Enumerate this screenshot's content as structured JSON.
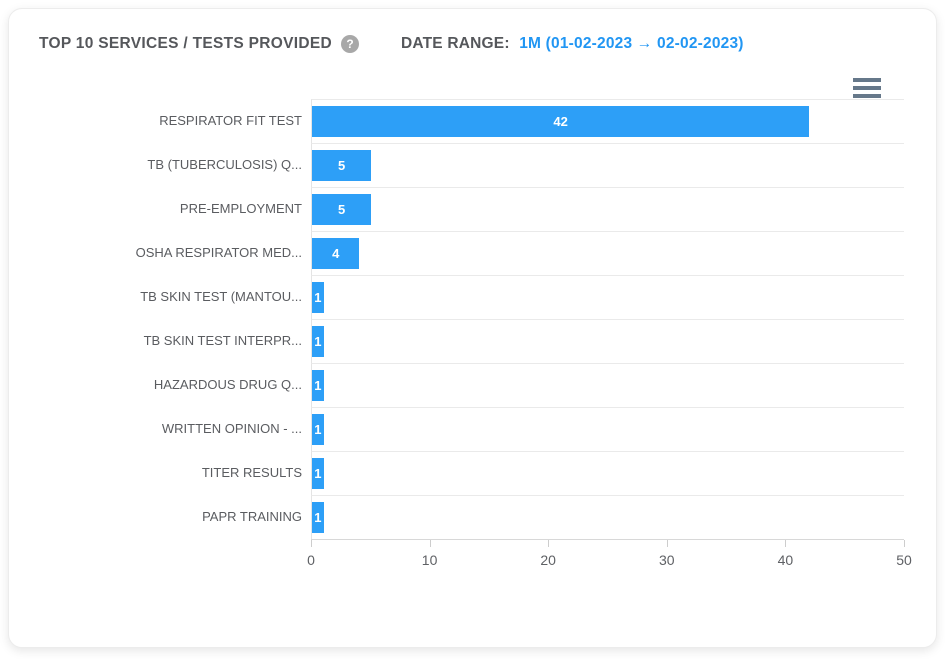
{
  "header": {
    "title": "TOP 10 SERVICES / TESTS PROVIDED",
    "help_icon_glyph": "?",
    "date_range_label": "DATE RANGE:",
    "date_range_value": "1M (01-02-2023 → 02-02-2023)"
  },
  "menu": {
    "icon": "hamburger-menu-icon"
  },
  "colors": {
    "bar": "#2d9ff7",
    "date_range_accent": "#2196f3",
    "title_text": "#55575b",
    "axis_text": "#5f6165",
    "gridline": "#eaeaea"
  },
  "chart_data": {
    "type": "bar",
    "orientation": "horizontal",
    "title": "TOP 10 SERVICES / TESTS PROVIDED",
    "categories": [
      "RESPIRATOR FIT TEST",
      "TB (TUBERCULOSIS) Q...",
      "PRE-EMPLOYMENT",
      "OSHA RESPIRATOR MED...",
      "TB SKIN TEST (MANTOU...",
      "TB SKIN TEST INTERPR...",
      "HAZARDOUS DRUG Q...",
      "WRITTEN OPINION - ...",
      "TITER RESULTS",
      "PAPR TRAINING"
    ],
    "values": [
      42,
      5,
      5,
      4,
      1,
      1,
      1,
      1,
      1,
      1
    ],
    "value_labels_inside_bars": true,
    "xlim": [
      0,
      50
    ],
    "x_ticks": [
      0,
      10,
      20,
      30,
      40,
      50
    ],
    "xlabel": "",
    "ylabel": "",
    "grid": "horizontal category separators",
    "legend": "none"
  }
}
